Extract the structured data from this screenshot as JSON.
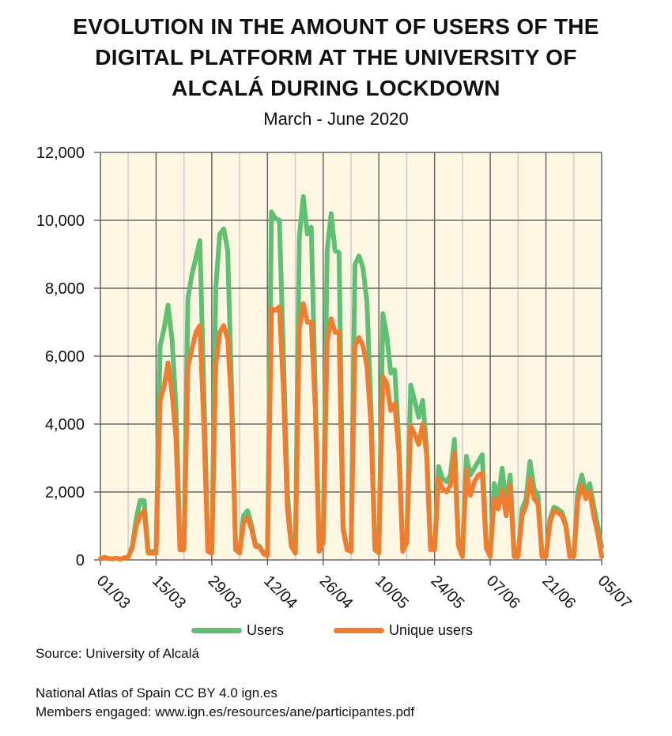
{
  "chart_data": {
    "type": "line",
    "title_lines": [
      "EVOLUTION IN THE AMOUNT OF USERS OF THE",
      "DIGITAL PLATFORM AT THE UNIVERSITY OF",
      "ALCALÁ DURING LOCKDOWN"
    ],
    "subtitle": "March - June 2020",
    "xlabel": "",
    "ylabel": "",
    "ylim": [
      0,
      12000
    ],
    "xlim_days": [
      0,
      126
    ],
    "y_ticks": [
      0,
      2000,
      4000,
      6000,
      8000,
      10000,
      12000
    ],
    "y_tick_labels": [
      "0",
      "2,000",
      "4,000",
      "6,000",
      "8,000",
      "10,000",
      "12,000"
    ],
    "x_tick_days": [
      0,
      14,
      28,
      42,
      56,
      70,
      84,
      98,
      112,
      126
    ],
    "x_tick_labels": [
      "01/03",
      "15/03",
      "29/03",
      "12/04",
      "26/04",
      "10/05",
      "24/05",
      "07/06",
      "21/06",
      "05/07"
    ],
    "grid": true,
    "legend_position": "bottom",
    "colors": {
      "plot_bg": "#fdf6e3",
      "grid_major": "#666666",
      "grid_minor": "#cccccc"
    },
    "series": [
      {
        "name": "Users",
        "color": "#5fbf72",
        "values": [
          30,
          80,
          40,
          30,
          50,
          20,
          60,
          80,
          400,
          1200,
          1750,
          1750,
          250,
          250,
          250,
          6300,
          6800,
          7500,
          6500,
          4500,
          400,
          350,
          7700,
          8400,
          8900,
          9400,
          5000,
          300,
          250,
          8000,
          9600,
          9750,
          9100,
          5000,
          300,
          250,
          1300,
          1450,
          1000,
          450,
          400,
          200,
          150,
          10250,
          10050,
          10000,
          6000,
          2000,
          500,
          250,
          9500,
          10700,
          9600,
          9800,
          5000,
          300,
          600,
          9100,
          10200,
          9100,
          9050,
          1000,
          300,
          250,
          8700,
          8950,
          8600,
          7600,
          4500,
          400,
          250,
          7250,
          6600,
          5500,
          5600,
          3500,
          300,
          500,
          5150,
          4700,
          4200,
          4700,
          3300,
          350,
          300,
          2750,
          2400,
          2300,
          2500,
          3550,
          500,
          150,
          3050,
          2500,
          2700,
          2900,
          3100,
          400,
          150,
          2250,
          1800,
          2700,
          1600,
          2500,
          200,
          150,
          1500,
          1800,
          2900,
          2100,
          1900,
          200,
          100,
          1200,
          1550,
          1500,
          1400,
          1050,
          200,
          100,
          2000,
          2500,
          2000,
          2250,
          1600,
          1000,
          400
        ]
      },
      {
        "name": "Unique users",
        "color": "#ee7d30",
        "values": [
          30,
          80,
          40,
          30,
          50,
          20,
          60,
          80,
          350,
          1000,
          1300,
          1450,
          200,
          200,
          200,
          4700,
          5100,
          5800,
          4900,
          3600,
          300,
          300,
          5700,
          6200,
          6700,
          6900,
          4000,
          250,
          200,
          5700,
          6700,
          6900,
          6500,
          4500,
          300,
          200,
          1100,
          1250,
          900,
          400,
          380,
          180,
          120,
          7400,
          7350,
          7450,
          5000,
          1500,
          400,
          200,
          6800,
          7550,
          7000,
          7000,
          4500,
          250,
          500,
          6400,
          7100,
          6700,
          6700,
          900,
          300,
          250,
          6300,
          6550,
          6300,
          5700,
          4000,
          300,
          200,
          5400,
          5200,
          4400,
          4600,
          3200,
          250,
          500,
          3950,
          3700,
          3400,
          4000,
          3100,
          300,
          300,
          2400,
          2100,
          2000,
          2200,
          3150,
          400,
          100,
          2650,
          1900,
          2300,
          2500,
          2550,
          350,
          100,
          1800,
          1500,
          2050,
          1300,
          2200,
          100,
          100,
          1300,
          1600,
          2400,
          1800,
          1650,
          100,
          100,
          1100,
          1450,
          1400,
          1300,
          1000,
          100,
          100,
          1750,
          2200,
          1800,
          2000,
          1300,
          800,
          100
        ]
      }
    ]
  },
  "footer": {
    "source": "Source: University of Alcalá",
    "atlas": "National Atlas of Spain CC BY 4.0 ign.es",
    "members": "Members engaged: www.ign.es/resources/ane/participantes.pdf"
  }
}
